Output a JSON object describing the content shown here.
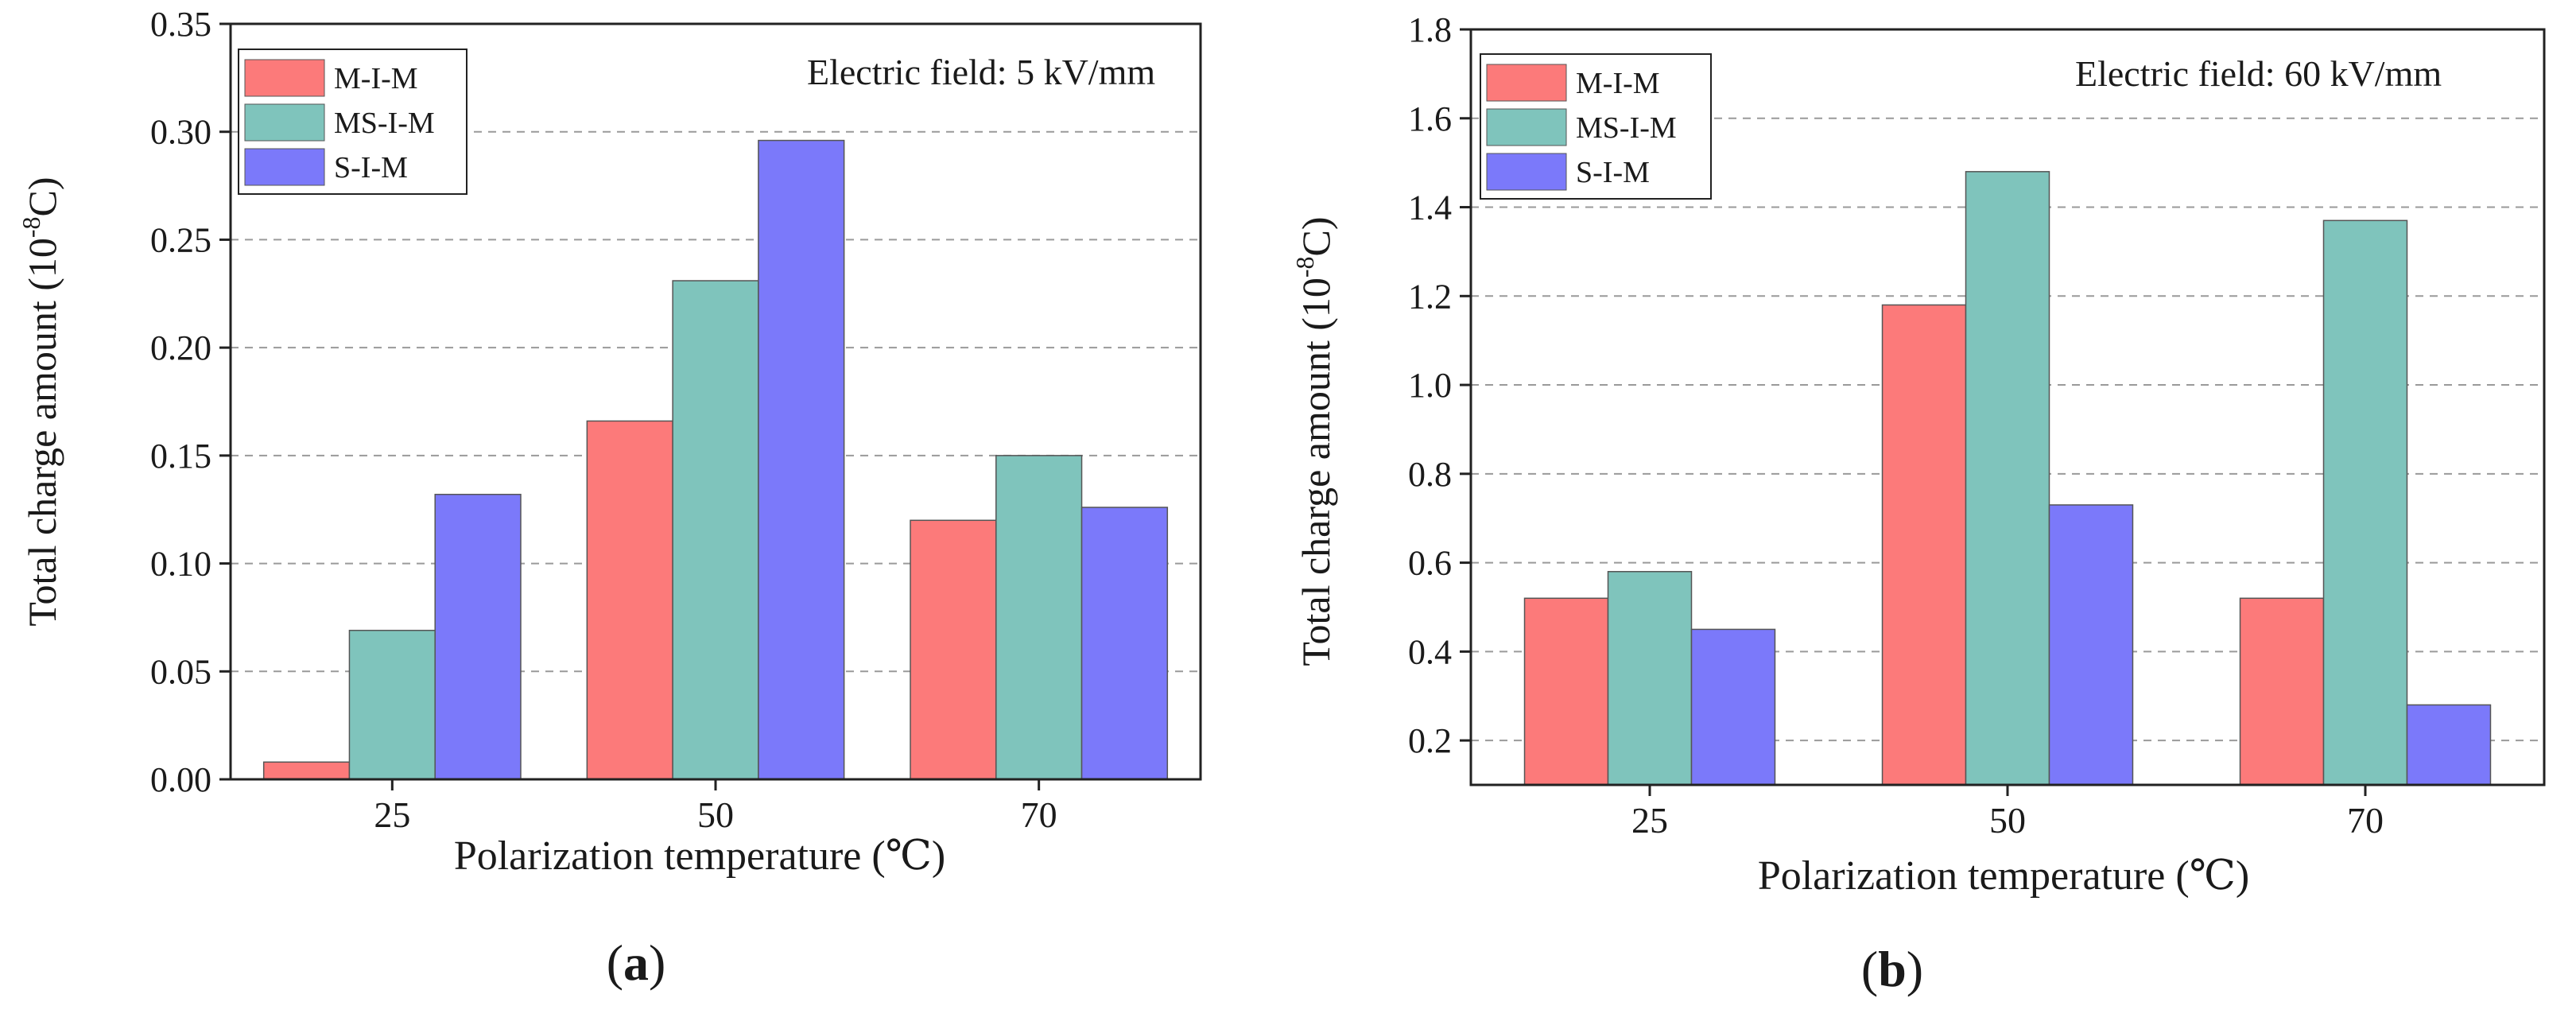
{
  "colors": {
    "m_i_m": "#fc7a7a",
    "ms_i_m": "#7fc4bc",
    "s_i_m": "#7b79fa",
    "axis": "#222222",
    "grid": "#9a9a9a"
  },
  "panels": [
    {
      "label_open": "(",
      "label_letter": "a",
      "label_close": ")"
    },
    {
      "label_open": "(",
      "label_letter": "b",
      "label_close": ")"
    }
  ],
  "chart_data": [
    {
      "type": "bar",
      "title": "",
      "annotation": "Electric field: 5 kV/mm",
      "xlabel": "Polarization temperature (℃)",
      "ylabel_main": "Total charge amount (10",
      "ylabel_sup": "-8",
      "ylabel_unit": "C)",
      "categories": [
        "25",
        "50",
        "70"
      ],
      "series": [
        {
          "name": "M-I-M",
          "values": [
            0.008,
            0.166,
            0.12
          ]
        },
        {
          "name": "MS-I-M",
          "values": [
            0.069,
            0.231,
            0.15
          ]
        },
        {
          "name": "S-I-M",
          "values": [
            0.132,
            0.296,
            0.126
          ]
        }
      ],
      "ylim": [
        0,
        0.35
      ],
      "yticks": [
        "0.00",
        "0.05",
        "0.10",
        "0.15",
        "0.20",
        "0.25",
        "0.30",
        "0.35"
      ],
      "grid": true,
      "legend_position": "top-left"
    },
    {
      "type": "bar",
      "title": "",
      "annotation": "Electric field: 60 kV/mm",
      "xlabel": "Polarization temperature (℃)",
      "ylabel_main": "Total charge amount (10",
      "ylabel_sup": "-8",
      "ylabel_unit": "C)",
      "categories": [
        "25",
        "50",
        "70"
      ],
      "series": [
        {
          "name": "M-I-M",
          "values": [
            0.52,
            1.18,
            0.52
          ]
        },
        {
          "name": "MS-I-M",
          "values": [
            0.58,
            1.48,
            1.37
          ]
        },
        {
          "name": "S-I-M",
          "values": [
            0.45,
            0.73,
            0.28
          ]
        }
      ],
      "ylim": [
        0.1,
        1.8
      ],
      "yticks": [
        "0.2",
        "0.4",
        "0.6",
        "0.8",
        "1.0",
        "1.2",
        "1.4",
        "1.6",
        "1.8"
      ],
      "grid": true,
      "legend_position": "top-left"
    }
  ]
}
